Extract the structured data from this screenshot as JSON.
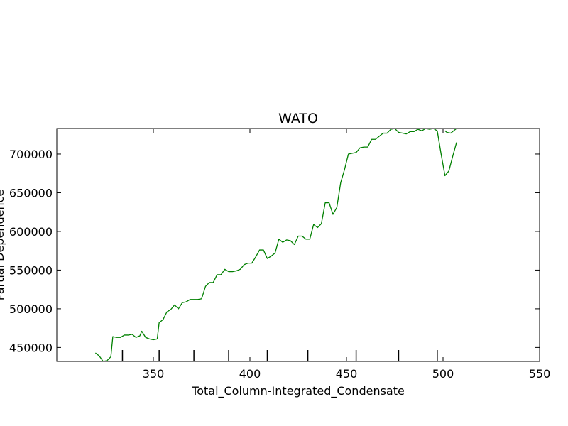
{
  "chart_data": {
    "type": "line",
    "title": "WATO",
    "xlabel": "Total_Column-Integrated_Condensate",
    "ylabel": "Partial Dependence",
    "xlim": [
      300,
      550
    ],
    "ylim": [
      432000,
      733000
    ],
    "xticks": [
      350,
      400,
      450,
      500,
      550
    ],
    "yticks": [
      450000,
      500000,
      550000,
      600000,
      650000,
      700000
    ],
    "rug": [
      334,
      353,
      371,
      389,
      409,
      430,
      455,
      477,
      497
    ],
    "series": [
      {
        "color": "#008000",
        "x": [
          320,
          322,
          324,
          326,
          328,
          329,
          331,
          333,
          335,
          337,
          339,
          341,
          343,
          344,
          346,
          348,
          350,
          352,
          353,
          355,
          357,
          359,
          361,
          363,
          365,
          367,
          369,
          371,
          373,
          375,
          377,
          379,
          381,
          383,
          385,
          387,
          389,
          391,
          393,
          395,
          397,
          399,
          401,
          403,
          405,
          407,
          409,
          411,
          413,
          415,
          417,
          419,
          421,
          423,
          425,
          427,
          429,
          431,
          433,
          435,
          437,
          439,
          441,
          443,
          445,
          447,
          449,
          451,
          453,
          455,
          457,
          459,
          461,
          463,
          465,
          467,
          469,
          471,
          473,
          475,
          477,
          479,
          481,
          483,
          485,
          487,
          489,
          491,
          493,
          495,
          497,
          499,
          501,
          503,
          505,
          507
        ],
        "y": [
          443000,
          439000,
          432000,
          433000,
          438000,
          464000,
          463000,
          463000,
          466000,
          466000,
          467000,
          463000,
          465000,
          471000,
          463000,
          461000,
          460000,
          461000,
          482000,
          486000,
          496000,
          499000,
          505000,
          500000,
          508000,
          509000,
          512000,
          512000,
          512000,
          513000,
          529000,
          534000,
          534000,
          544000,
          544000,
          551000,
          548000,
          548000,
          549000,
          551000,
          557000,
          559000,
          559000,
          567000,
          576000,
          576000,
          565000,
          568000,
          572000,
          590000,
          586000,
          589000,
          588000,
          583000,
          594000,
          594000,
          590000,
          590000,
          609000,
          605000,
          610000,
          637000,
          637000,
          622000,
          631000,
          663000,
          680000,
          700000,
          701000,
          702000,
          708000,
          709000,
          709000,
          719000,
          719000,
          723000,
          727000,
          727000,
          732000,
          733000,
          728000,
          727000,
          726000,
          729000,
          729000,
          732000,
          730000,
          733000,
          732000,
          733000,
          730000,
          700000,
          672000,
          678000,
          697000,
          715000
        ]
      },
      {
        "color": "#008000",
        "x": [
          501,
          502,
          504,
          506,
          507
        ],
        "y": [
          730000,
          728000,
          727000,
          731000,
          733000
        ]
      }
    ]
  }
}
